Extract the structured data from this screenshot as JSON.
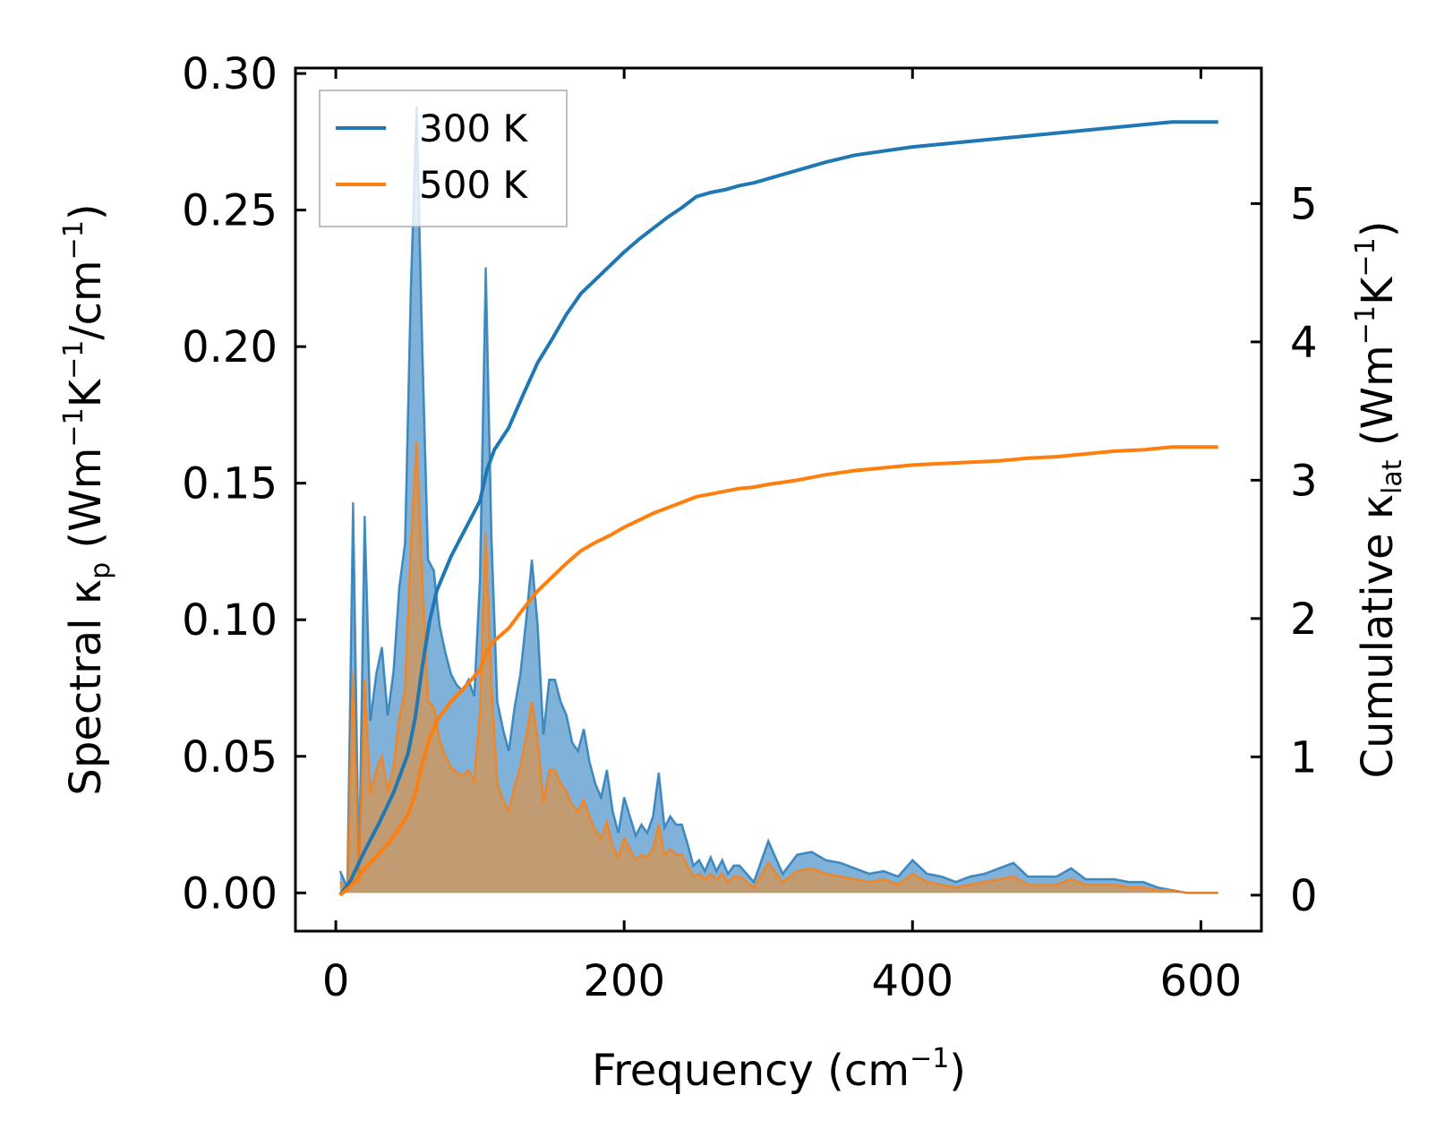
{
  "chart_data": {
    "type": "line",
    "xlabel": {
      "main": "Frequency (cm",
      "sup": "−1",
      "tail": ")"
    },
    "ylabel_left": {
      "p1": "Spectral κ",
      "p1_sub": "p",
      "p2": " (Wm",
      "p2_sup": "−1",
      "p3": "K",
      "p3_sup": "−1",
      "p4": "/cm",
      "p4_sup": "−1",
      "p5": ")"
    },
    "ylabel_right": {
      "p1": "Cumulative κ",
      "p1_sub": "lat",
      "p2": " (Wm",
      "p2_sup": "−1",
      "p3": "K",
      "p3_sup": "−1",
      "p4": ")"
    },
    "xlim": [
      -28,
      642
    ],
    "ylim_left": [
      -0.014,
      0.302
    ],
    "ylim_right": [
      -0.26,
      5.98
    ],
    "x_ticks": [
      0,
      200,
      400,
      600
    ],
    "x_tick_labels": [
      "0",
      "200",
      "400",
      "600"
    ],
    "y_left_ticks": [
      0.0,
      0.05,
      0.1,
      0.15,
      0.2,
      0.25,
      0.3
    ],
    "y_left_tick_labels": [
      "0.00",
      "0.05",
      "0.10",
      "0.15",
      "0.20",
      "0.25",
      "0.30"
    ],
    "y_right_ticks": [
      0,
      1,
      2,
      3,
      4,
      5
    ],
    "y_right_tick_labels": [
      "0",
      "1",
      "2",
      "3",
      "4",
      "5"
    ],
    "legend": {
      "placement": "top-left",
      "entries": [
        "300 K",
        "500 K"
      ]
    },
    "series": [
      {
        "name": "300 K",
        "color": "#1f77b4",
        "fill_color": "#4a90c8",
        "spectral": {
          "x": [
            3,
            8,
            12,
            16,
            20,
            24,
            28,
            32,
            36,
            40,
            44,
            48,
            52,
            56,
            60,
            64,
            68,
            72,
            76,
            80,
            84,
            88,
            92,
            96,
            100,
            104,
            108,
            112,
            116,
            120,
            124,
            128,
            132,
            136,
            140,
            144,
            148,
            152,
            156,
            160,
            164,
            168,
            172,
            176,
            180,
            184,
            188,
            192,
            196,
            200,
            204,
            208,
            212,
            216,
            220,
            224,
            228,
            232,
            236,
            240,
            244,
            248,
            252,
            256,
            260,
            264,
            268,
            272,
            276,
            280,
            290,
            300,
            310,
            320,
            330,
            340,
            350,
            360,
            370,
            380,
            390,
            400,
            410,
            420,
            430,
            440,
            450,
            460,
            470,
            480,
            490,
            500,
            510,
            520,
            530,
            540,
            550,
            560,
            570,
            580,
            590,
            600,
            612
          ],
          "y": [
            0.008,
            0.002,
            0.143,
            0.005,
            0.138,
            0.063,
            0.08,
            0.09,
            0.065,
            0.081,
            0.112,
            0.128,
            0.22,
            0.288,
            0.2,
            0.122,
            0.118,
            0.098,
            0.088,
            0.08,
            0.076,
            0.074,
            0.078,
            0.072,
            0.115,
            0.229,
            0.13,
            0.07,
            0.06,
            0.052,
            0.068,
            0.08,
            0.1,
            0.122,
            0.098,
            0.058,
            0.078,
            0.078,
            0.07,
            0.065,
            0.055,
            0.052,
            0.06,
            0.048,
            0.04,
            0.035,
            0.045,
            0.03,
            0.022,
            0.035,
            0.028,
            0.021,
            0.025,
            0.022,
            0.028,
            0.044,
            0.024,
            0.028,
            0.025,
            0.025,
            0.018,
            0.01,
            0.012,
            0.008,
            0.013,
            0.008,
            0.012,
            0.007,
            0.01,
            0.01,
            0.004,
            0.019,
            0.007,
            0.014,
            0.015,
            0.012,
            0.011,
            0.009,
            0.007,
            0.008,
            0.006,
            0.012,
            0.007,
            0.006,
            0.004,
            0.006,
            0.007,
            0.009,
            0.011,
            0.006,
            0.006,
            0.006,
            0.009,
            0.005,
            0.005,
            0.005,
            0.004,
            0.004,
            0.002,
            0.001,
            0.0,
            0.0,
            0.0
          ]
        },
        "cumulative": {
          "x": [
            3,
            10,
            20,
            30,
            40,
            50,
            55,
            60,
            65,
            70,
            80,
            90,
            100,
            105,
            110,
            120,
            130,
            140,
            150,
            160,
            170,
            180,
            190,
            200,
            210,
            220,
            230,
            240,
            250,
            260,
            270,
            280,
            290,
            300,
            320,
            340,
            360,
            380,
            400,
            420,
            440,
            460,
            480,
            500,
            520,
            540,
            560,
            580,
            600,
            612
          ],
          "y": [
            0.0,
            0.1,
            0.32,
            0.52,
            0.74,
            1.02,
            1.28,
            1.65,
            1.98,
            2.2,
            2.45,
            2.65,
            2.85,
            3.08,
            3.22,
            3.38,
            3.62,
            3.85,
            4.02,
            4.2,
            4.35,
            4.45,
            4.55,
            4.65,
            4.74,
            4.82,
            4.9,
            4.97,
            5.05,
            5.08,
            5.1,
            5.13,
            5.15,
            5.18,
            5.24,
            5.3,
            5.35,
            5.38,
            5.41,
            5.43,
            5.45,
            5.47,
            5.49,
            5.51,
            5.53,
            5.55,
            5.57,
            5.59,
            5.59,
            5.59
          ]
        }
      },
      {
        "name": "500 K",
        "color": "#ff7f0e",
        "fill_color": "#c49a6c",
        "spectral": {
          "x": [
            3,
            8,
            12,
            16,
            20,
            24,
            28,
            32,
            36,
            40,
            44,
            48,
            52,
            56,
            60,
            64,
            68,
            72,
            76,
            80,
            84,
            88,
            92,
            96,
            100,
            104,
            108,
            112,
            116,
            120,
            124,
            128,
            132,
            136,
            140,
            144,
            148,
            152,
            156,
            160,
            164,
            168,
            172,
            176,
            180,
            184,
            188,
            192,
            196,
            200,
            204,
            208,
            212,
            216,
            220,
            224,
            228,
            232,
            236,
            240,
            244,
            248,
            252,
            256,
            260,
            264,
            268,
            272,
            276,
            280,
            290,
            300,
            310,
            320,
            330,
            340,
            350,
            360,
            370,
            380,
            390,
            400,
            410,
            420,
            430,
            440,
            450,
            460,
            470,
            480,
            490,
            500,
            510,
            520,
            530,
            540,
            550,
            560,
            570,
            580,
            590,
            600,
            612
          ],
          "y": [
            0.004,
            0.001,
            0.081,
            0.003,
            0.078,
            0.036,
            0.045,
            0.05,
            0.037,
            0.046,
            0.064,
            0.074,
            0.125,
            0.165,
            0.115,
            0.07,
            0.068,
            0.056,
            0.05,
            0.046,
            0.044,
            0.043,
            0.045,
            0.041,
            0.066,
            0.132,
            0.075,
            0.04,
            0.034,
            0.03,
            0.039,
            0.046,
            0.057,
            0.07,
            0.056,
            0.033,
            0.045,
            0.045,
            0.04,
            0.037,
            0.032,
            0.03,
            0.034,
            0.028,
            0.023,
            0.02,
            0.026,
            0.017,
            0.013,
            0.02,
            0.016,
            0.012,
            0.014,
            0.013,
            0.016,
            0.025,
            0.014,
            0.016,
            0.014,
            0.014,
            0.01,
            0.006,
            0.007,
            0.005,
            0.007,
            0.005,
            0.007,
            0.004,
            0.006,
            0.006,
            0.002,
            0.011,
            0.004,
            0.008,
            0.009,
            0.007,
            0.006,
            0.005,
            0.004,
            0.005,
            0.003,
            0.007,
            0.004,
            0.003,
            0.002,
            0.003,
            0.004,
            0.005,
            0.006,
            0.003,
            0.003,
            0.003,
            0.005,
            0.003,
            0.003,
            0.003,
            0.002,
            0.002,
            0.001,
            0.001,
            0.0,
            0.0,
            0.0
          ]
        },
        "cumulative": {
          "x": [
            3,
            10,
            20,
            30,
            40,
            50,
            55,
            60,
            65,
            70,
            80,
            90,
            100,
            105,
            110,
            120,
            130,
            140,
            150,
            160,
            170,
            180,
            190,
            200,
            210,
            220,
            230,
            240,
            250,
            260,
            270,
            280,
            290,
            300,
            320,
            340,
            360,
            380,
            400,
            420,
            440,
            460,
            480,
            500,
            520,
            540,
            560,
            580,
            600,
            612
          ],
          "y": [
            0.0,
            0.06,
            0.19,
            0.3,
            0.42,
            0.58,
            0.73,
            0.95,
            1.13,
            1.26,
            1.4,
            1.51,
            1.63,
            1.77,
            1.84,
            1.93,
            2.07,
            2.2,
            2.3,
            2.4,
            2.49,
            2.55,
            2.6,
            2.66,
            2.71,
            2.76,
            2.8,
            2.84,
            2.88,
            2.9,
            2.92,
            2.94,
            2.95,
            2.97,
            3.0,
            3.04,
            3.07,
            3.09,
            3.11,
            3.12,
            3.13,
            3.14,
            3.16,
            3.17,
            3.19,
            3.21,
            3.22,
            3.24,
            3.24,
            3.24
          ]
        }
      }
    ]
  }
}
